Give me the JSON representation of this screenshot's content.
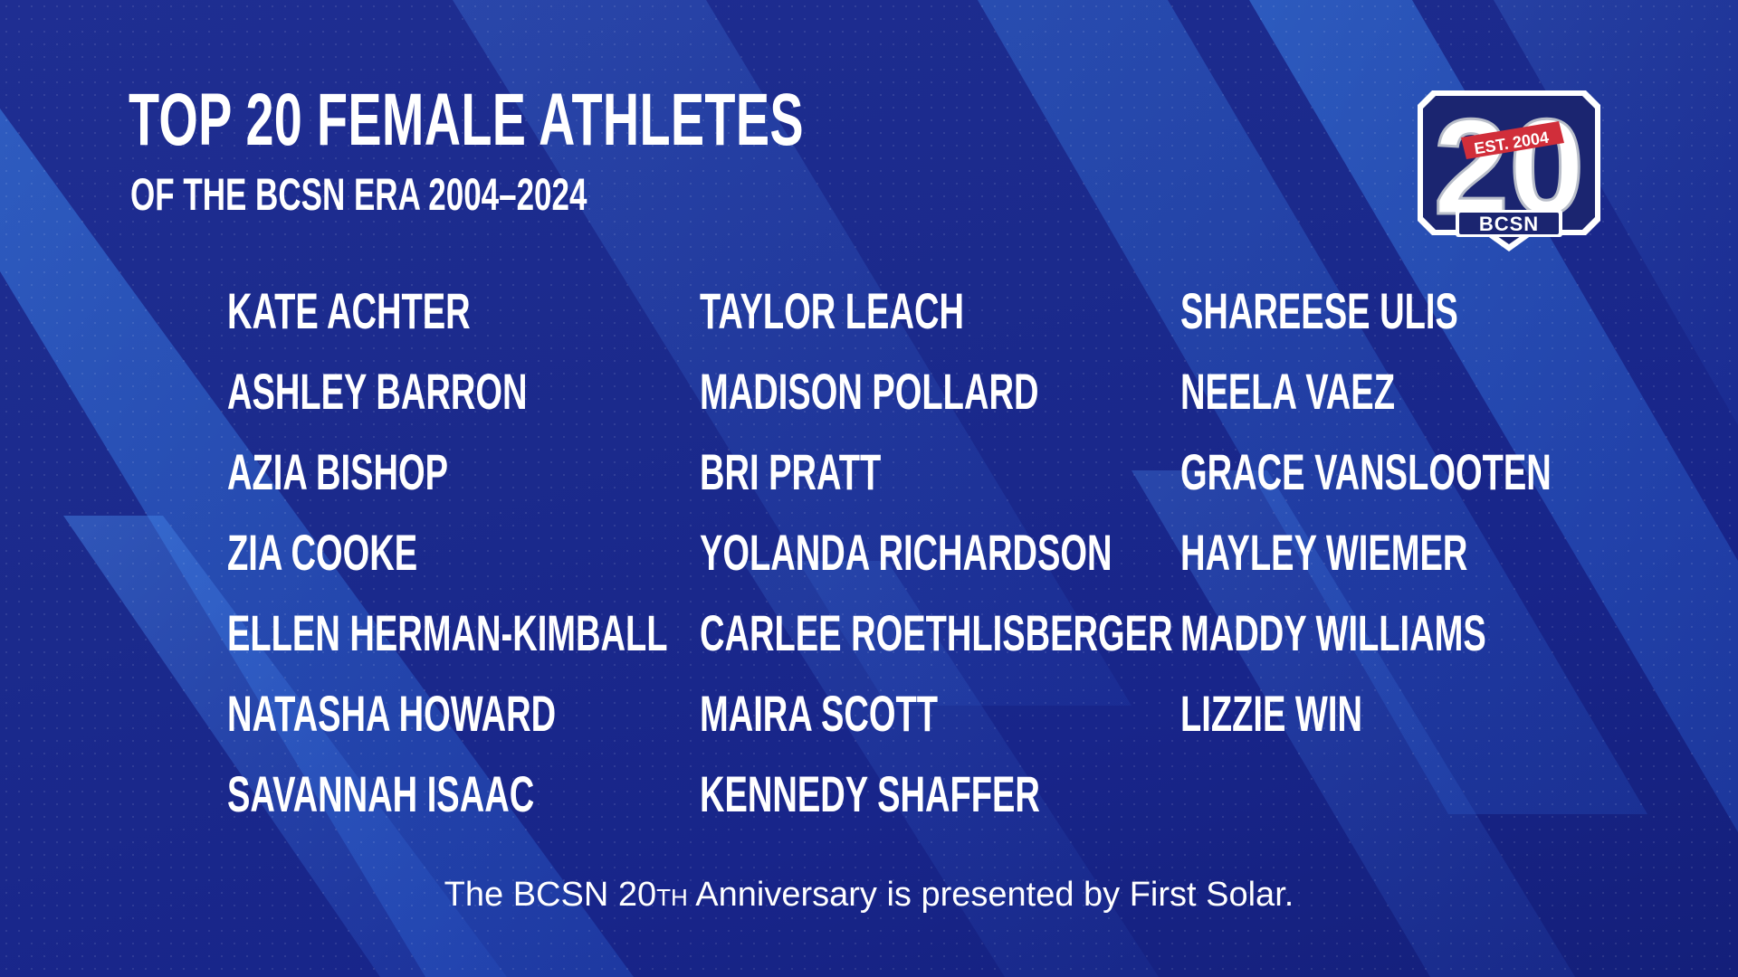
{
  "title": "TOP 20 FEMALE ATHLETES",
  "subtitle": "OF THE BCSN ERA 2004–2024",
  "logo": {
    "number": "20",
    "est": "EST. 2004",
    "brand": "BCSN",
    "colors": {
      "navy": "#1b2570",
      "red": "#d12e3a",
      "white": "#ffffff",
      "gray": "#b9bec9"
    }
  },
  "athletes": {
    "column1": [
      "KATE ACHTER",
      "ASHLEY BARRON",
      "AZIA BISHOP",
      "ZIA COOKE",
      "ELLEN HERMAN-KIMBALL",
      "NATASHA HOWARD",
      "SAVANNAH ISAAC"
    ],
    "column2": [
      "TAYLOR LEACH",
      "MADISON POLLARD",
      "BRI PRATT",
      "YOLANDA RICHARDSON",
      "CARLEE ROETHLISBERGER",
      "MAIRA SCOTT",
      "KENNEDY SHAFFER"
    ],
    "column3": [
      "SHAREESE ULIS",
      "NEELA VAEZ",
      "GRACE VANSLOOTEN",
      "HAYLEY WIEMER",
      "MADDY WILLIAMS",
      "LIZZIE WIN"
    ]
  },
  "footer": {
    "before": "The BCSN 20",
    "superscript": "TH",
    "after": " Anniversary is presented by First Solar."
  },
  "colors": {
    "background": "#1b2a8c",
    "stripe": "#2f6fd6",
    "text": "#ffffff"
  }
}
